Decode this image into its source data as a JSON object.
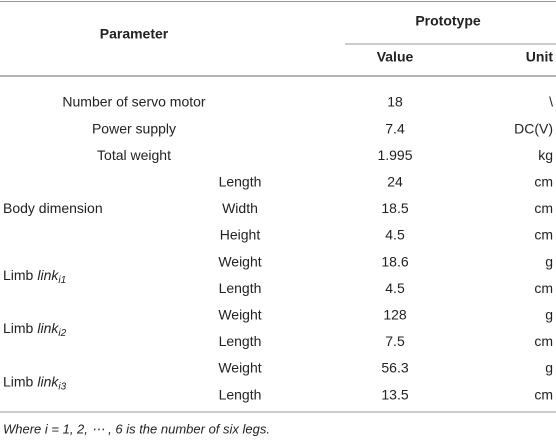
{
  "table": {
    "header": {
      "parameter": "Parameter",
      "prototype": "Prototype",
      "value": "Value",
      "unit": "Unit"
    },
    "sections": [
      {
        "label": "Number of servo motor",
        "rows": [
          {
            "value": 18,
            "unit": "\\"
          }
        ]
      },
      {
        "label": "Power supply",
        "rows": [
          {
            "value": 7.4,
            "unit": "DC(V)"
          }
        ]
      },
      {
        "label": "Total weight",
        "rows": [
          {
            "value": 1.995,
            "unit": "kg"
          }
        ]
      },
      {
        "label": "Body dimension",
        "rows": [
          {
            "name": "Length",
            "value": 24,
            "unit": "cm"
          },
          {
            "name": "Width",
            "value": 18.5,
            "unit": "cm"
          },
          {
            "name": "Height",
            "value": 4.5,
            "unit": "cm"
          }
        ]
      },
      {
        "label": {
          "text": "Limb",
          "link": "link",
          "sub": "i1"
        },
        "rows": [
          {
            "name": "Weight",
            "value": 18.6,
            "unit": "g"
          },
          {
            "name": "Length",
            "value": 4.5,
            "unit": "cm"
          }
        ]
      },
      {
        "label": {
          "text": "Limb",
          "link": "link",
          "sub": "i2"
        },
        "rows": [
          {
            "name": "Weight",
            "value": 128,
            "unit": "g"
          },
          {
            "name": "Length",
            "value": 7.5,
            "unit": "cm"
          }
        ]
      },
      {
        "label": {
          "text": "Limb",
          "link": "link",
          "sub": "i3"
        },
        "rows": [
          {
            "name": "Weight",
            "value": 56.3,
            "unit": "g"
          },
          {
            "name": "Length",
            "value": 13.5,
            "unit": "cm"
          }
        ]
      }
    ],
    "footnote": "Where i = 1, 2, ⋯ , 6 is the number of six legs."
  }
}
